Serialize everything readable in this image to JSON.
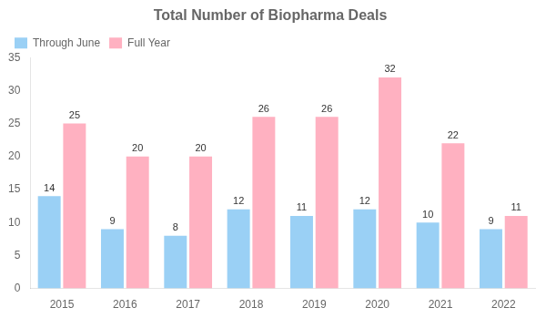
{
  "chart_data": {
    "type": "bar",
    "title": "Total Number of Biopharma Deals",
    "categories": [
      "2015",
      "2016",
      "2017",
      "2018",
      "2019",
      "2020",
      "2021",
      "2022"
    ],
    "series": [
      {
        "name": "Through June",
        "values": [
          14,
          9,
          8,
          12,
          11,
          12,
          10,
          9
        ]
      },
      {
        "name": "Full Year",
        "values": [
          25,
          20,
          20,
          26,
          26,
          32,
          22,
          11
        ]
      }
    ],
    "ylim": [
      0,
      35
    ],
    "yticks": [
      0,
      5,
      10,
      15,
      20,
      25,
      30,
      35
    ],
    "grid": false,
    "legend": "upper left",
    "data_labels": true
  }
}
